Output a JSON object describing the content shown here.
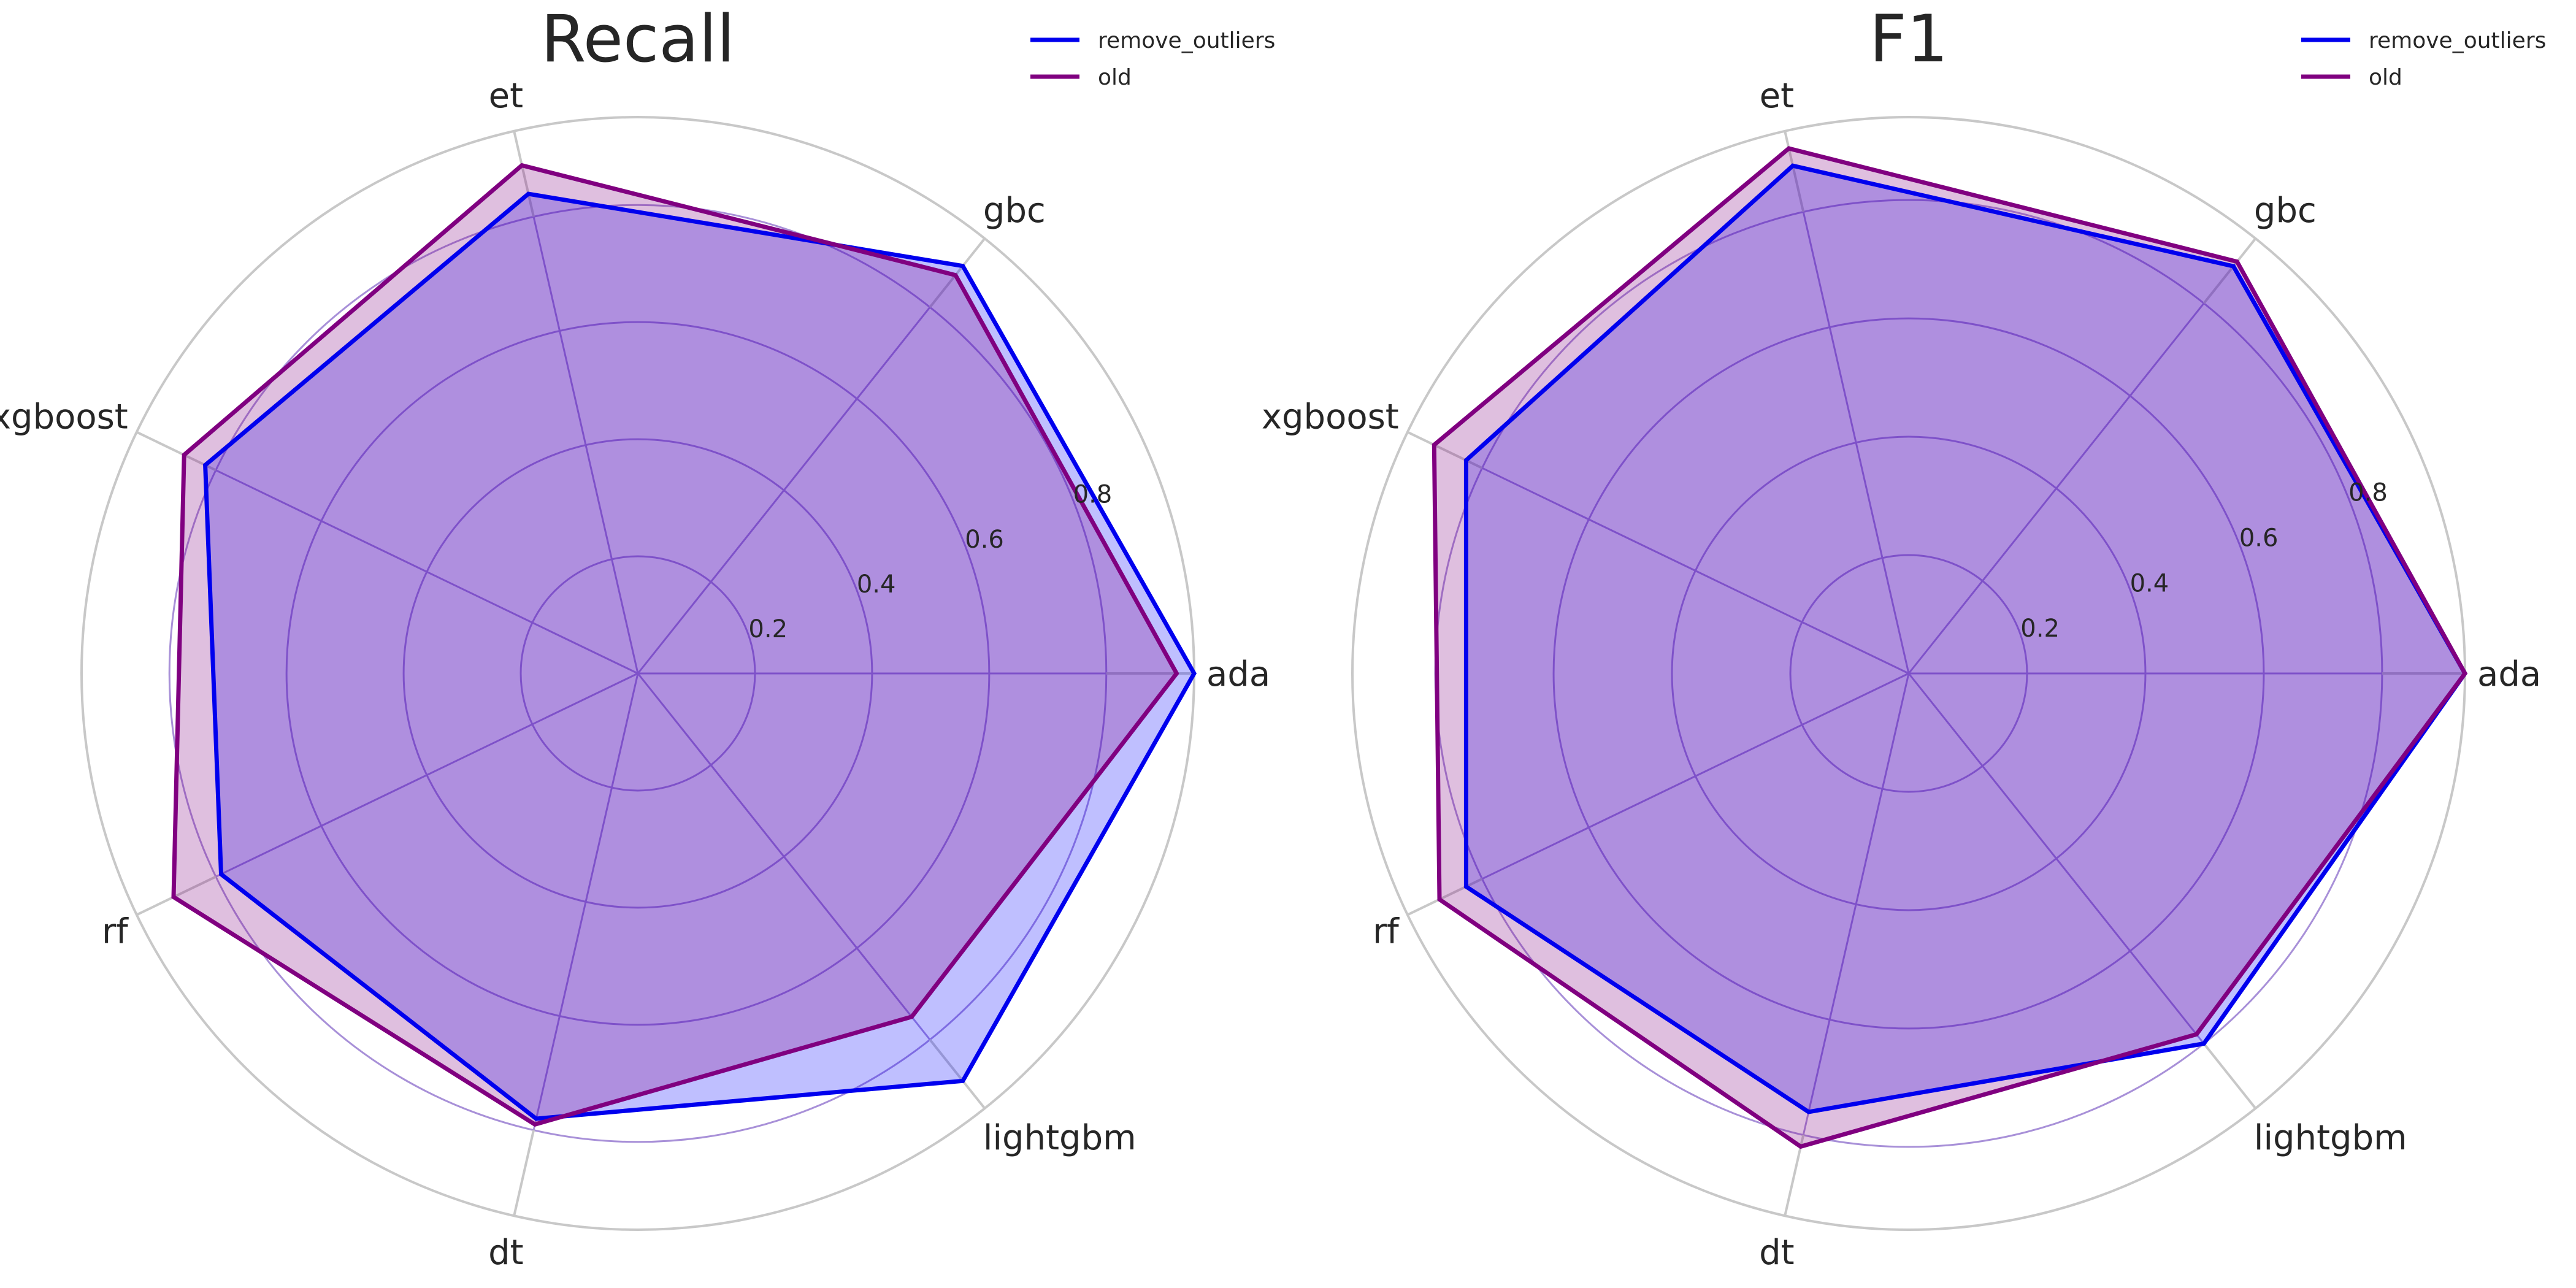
{
  "chart_data": [
    {
      "type": "radar",
      "title": "Recall",
      "categories": [
        "ada",
        "gbc",
        "et",
        "xgboost",
        "rf",
        "dt",
        "lightgbm"
      ],
      "rlim": [
        0,
        0.95
      ],
      "rticks": [
        0.2,
        0.4,
        0.6,
        0.8
      ],
      "rtick_labels": [
        "0.2",
        "0.4",
        "0.6",
        "0.8"
      ],
      "grid": true,
      "legend_position": "top-right",
      "series": [
        {
          "name": "remove_outliers",
          "color": "#0000ee",
          "fill": "#0000ff",
          "values": [
            0.95,
            0.89,
            0.84,
            0.82,
            0.79,
            0.78,
            0.89
          ]
        },
        {
          "name": "old",
          "color": "#800080",
          "fill": "#800080",
          "values": [
            0.92,
            0.87,
            0.89,
            0.86,
            0.88,
            0.79,
            0.75
          ]
        }
      ]
    },
    {
      "type": "radar",
      "title": "F1",
      "categories": [
        "ada",
        "gbc",
        "et",
        "xgboost",
        "rf",
        "dt",
        "lightgbm"
      ],
      "rlim": [
        0,
        0.94
      ],
      "rticks": [
        0.2,
        0.4,
        0.6,
        0.8
      ],
      "rtick_labels": [
        "0.2",
        "0.4",
        "0.6",
        "0.8"
      ],
      "grid": true,
      "legend_position": "top-right",
      "series": [
        {
          "name": "remove_outliers",
          "color": "#0000ee",
          "fill": "#0000ff",
          "values": [
            0.94,
            0.88,
            0.88,
            0.83,
            0.83,
            0.76,
            0.8
          ]
        },
        {
          "name": "old",
          "color": "#800080",
          "fill": "#800080",
          "values": [
            0.94,
            0.89,
            0.91,
            0.89,
            0.88,
            0.82,
            0.78
          ]
        }
      ]
    }
  ]
}
